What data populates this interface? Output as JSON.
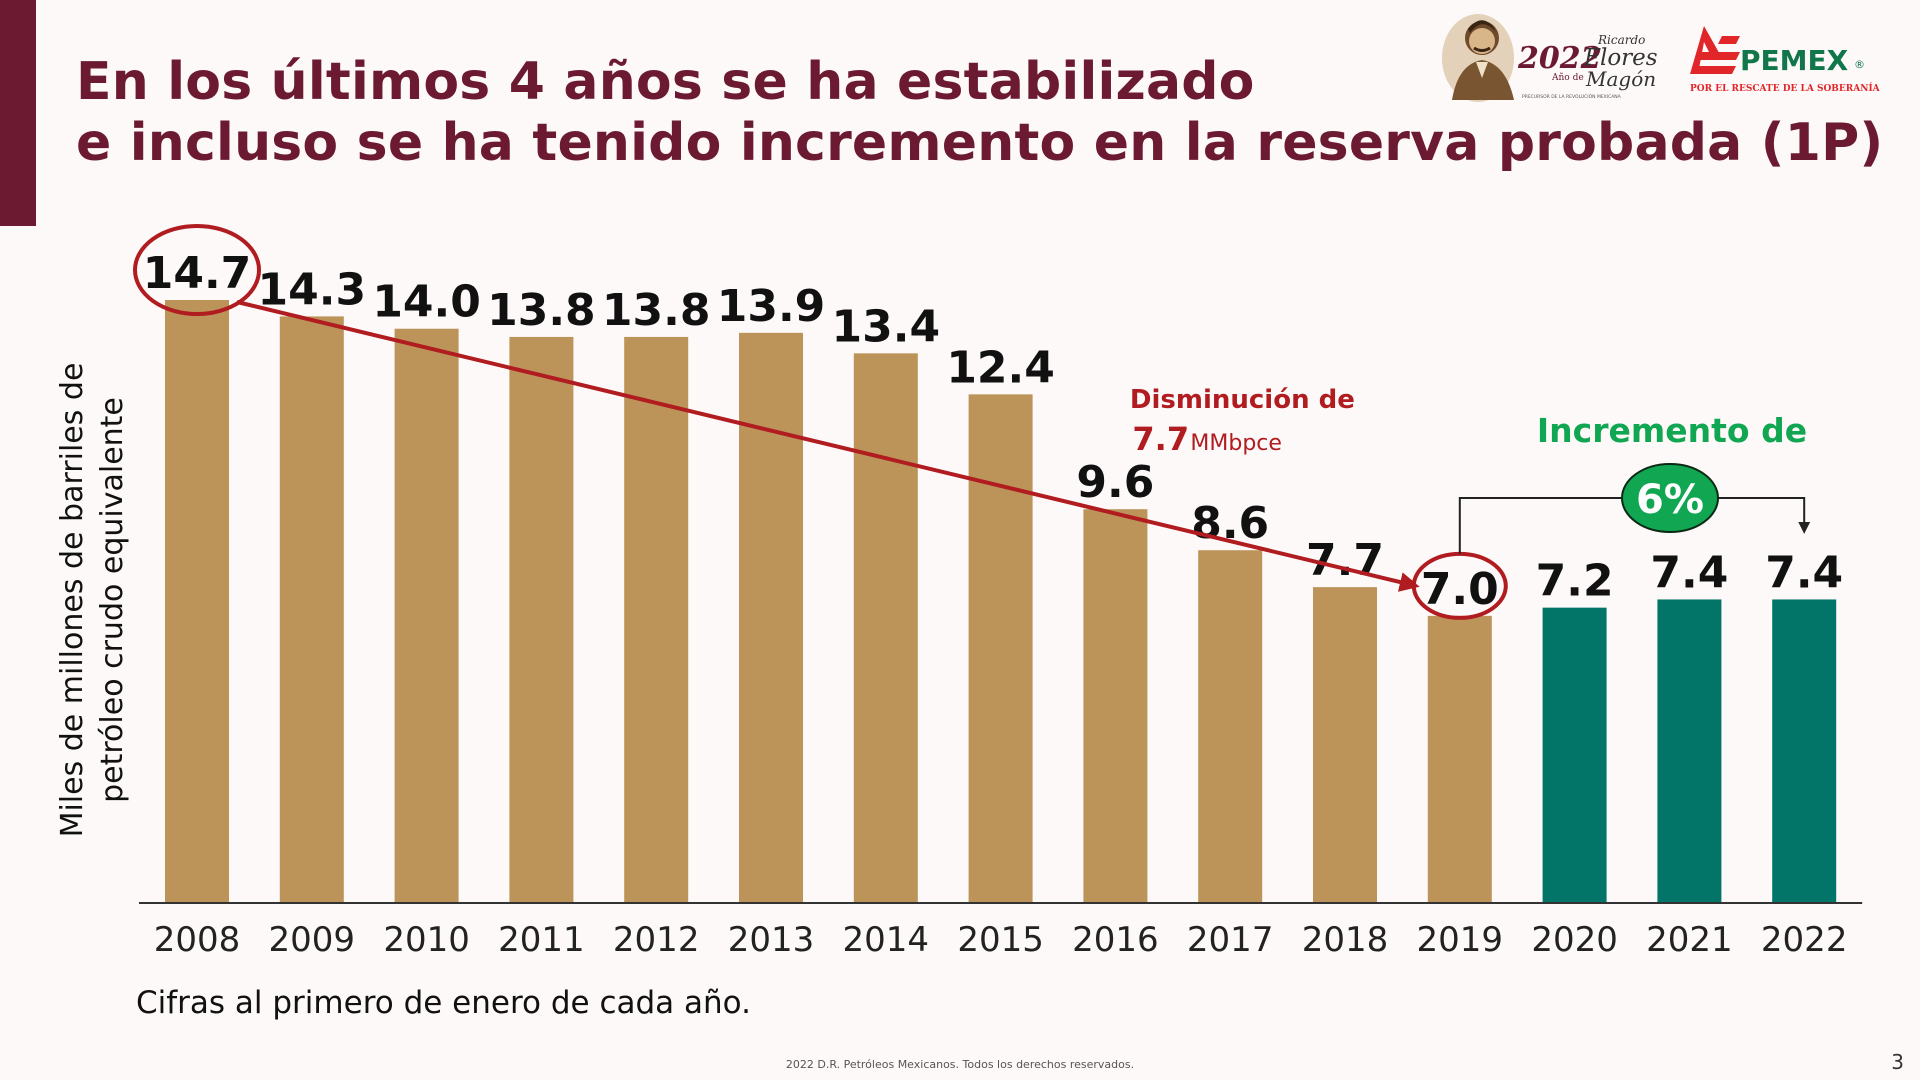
{
  "title": {
    "line1": "En los últimos 4 años se ha estabilizado",
    "line2": "e incluso se ha tenido incremento en la reserva probada (1P)"
  },
  "logos": {
    "anniversary_year": "2022",
    "anniversary_year_caption": "Año de",
    "anniversary_name_line1": "Ricardo",
    "anniversary_name_line2": "Flores",
    "anniversary_name_line3": "Magón",
    "anniversary_tagline": "PRECURSOR DE LA REVOLUCIÓN MEXICANA",
    "pemex_name": "PEMEX",
    "pemex_registered": "®",
    "pemex_tagline": "POR EL RESCATE DE LA SOBERANÍA"
  },
  "chart_data": {
    "type": "bar",
    "ylabel_line1": "Miles de millones de barriles de",
    "ylabel_line2": "petróleo crudo equivalente",
    "categories": [
      "2008",
      "2009",
      "2010",
      "2011",
      "2012",
      "2013",
      "2014",
      "2015",
      "2016",
      "2017",
      "2018",
      "2019",
      "2020",
      "2021",
      "2022"
    ],
    "values": [
      14.7,
      14.3,
      14.0,
      13.8,
      13.8,
      13.9,
      13.4,
      12.4,
      9.6,
      8.6,
      7.7,
      7.0,
      7.2,
      7.4,
      7.4
    ],
    "value_labels": [
      "14.7",
      "14.3",
      "14.0",
      "13.8",
      "13.8",
      "13.9",
      "13.4",
      "12.4",
      "9.6",
      "8.6",
      "7.7",
      "7.0",
      "7.2",
      "7.4",
      "7.4"
    ],
    "ylim": [
      0,
      15
    ],
    "grid": false,
    "colors": {
      "bar_decline": "#bc9459",
      "bar_increase": "#037568",
      "decline_annotation": "#b01c1f",
      "increase_annotation": "#11a651",
      "axis": "#333333"
    },
    "annotations": {
      "decrease_line1": "Disminución de",
      "decrease_value": "7.7",
      "decrease_unit": "MMbpce",
      "increase_line1": "Incremento de",
      "increase_value": "6%"
    }
  },
  "footnote": "Cifras al primero de enero de cada año.",
  "copyright": "2022 D.R. Petróleos Mexicanos. Todos los derechos reservados.",
  "page_number": "3"
}
